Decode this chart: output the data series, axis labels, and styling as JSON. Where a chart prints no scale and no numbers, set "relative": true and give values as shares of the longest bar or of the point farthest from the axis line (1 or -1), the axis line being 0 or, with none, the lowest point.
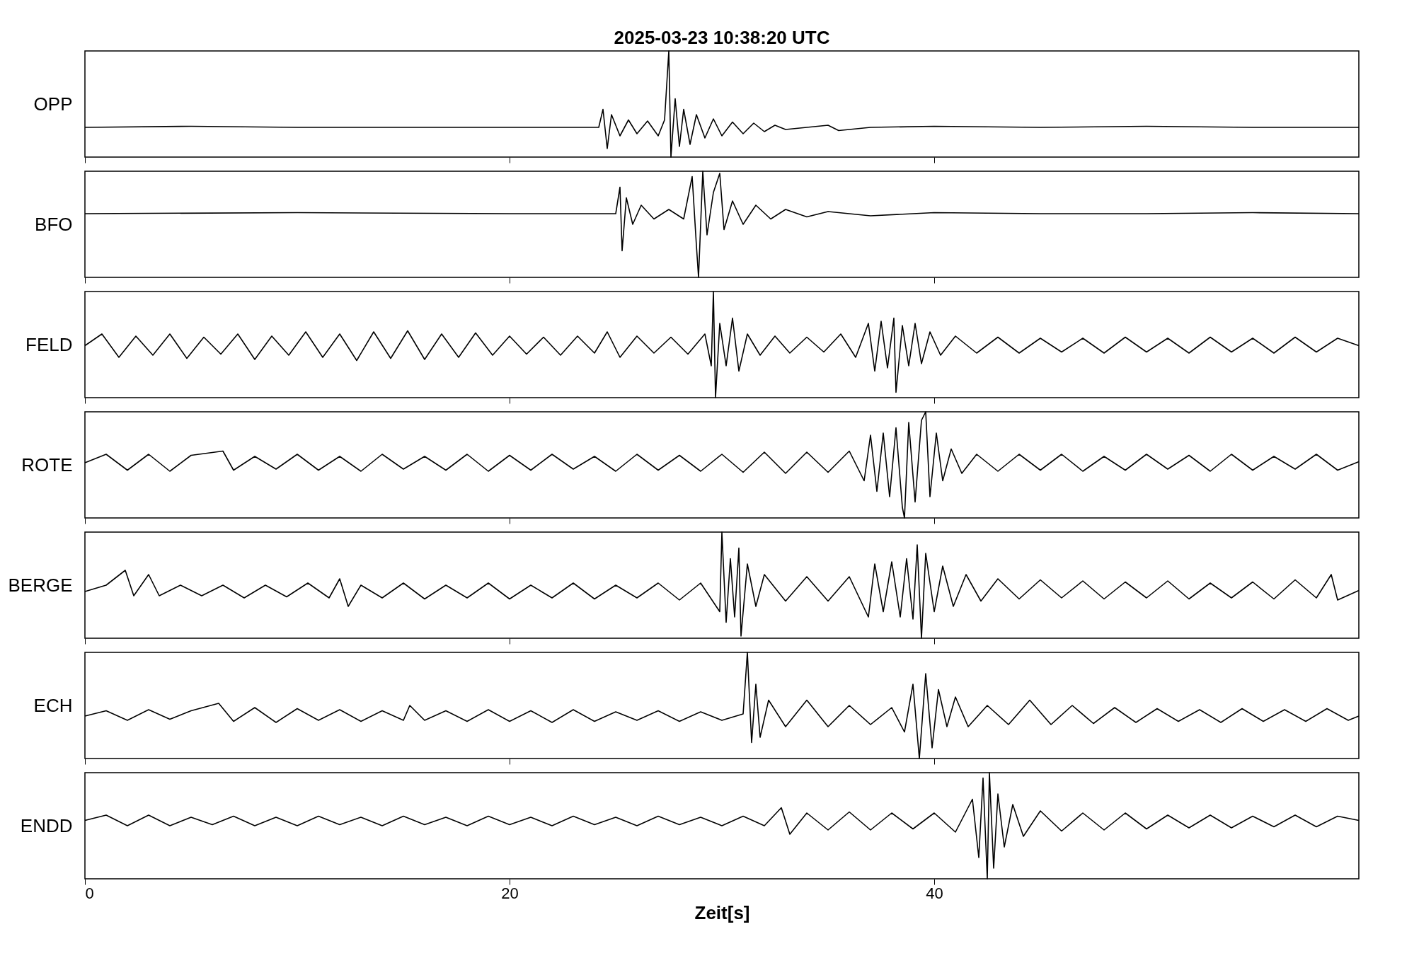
{
  "chart_data": [
    {
      "type": "line",
      "title": "2025-03-23  10:38:20 UTC",
      "ylabel": "OPP",
      "relative": true,
      "xlim": [
        0,
        60
      ],
      "xticks": [
        0,
        20,
        40
      ],
      "tick_labels": false,
      "grid": false,
      "x": [
        0,
        5,
        10,
        15,
        20,
        24.2,
        24.4,
        24.6,
        24.8,
        25.2,
        25.6,
        26,
        26.5,
        27,
        27.3,
        27.5,
        27.6,
        27.8,
        28,
        28.2,
        28.5,
        28.8,
        29.2,
        29.6,
        30,
        30.5,
        31,
        31.5,
        32,
        32.5,
        33,
        35,
        35.5,
        37,
        40,
        45,
        50,
        55,
        60
      ],
      "series": [
        {
          "color": "#000000",
          "values": [
            0.28,
            0.29,
            0.28,
            0.28,
            0.28,
            0.28,
            0.45,
            0.08,
            0.4,
            0.2,
            0.35,
            0.22,
            0.34,
            0.2,
            0.35,
            1.0,
            0.0,
            0.55,
            0.1,
            0.45,
            0.12,
            0.4,
            0.18,
            0.36,
            0.2,
            0.33,
            0.22,
            0.32,
            0.24,
            0.3,
            0.26,
            0.3,
            0.25,
            0.28,
            0.29,
            0.28,
            0.29,
            0.28,
            0.28
          ]
        }
      ]
    },
    {
      "type": "line",
      "ylabel": "BFO",
      "relative": true,
      "xlim": [
        0,
        60
      ],
      "xticks": [
        0,
        20,
        40
      ],
      "tick_labels": false,
      "grid": false,
      "x": [
        0,
        10,
        20,
        25,
        25.2,
        25.3,
        25.5,
        25.8,
        26.2,
        26.8,
        27.5,
        28.2,
        28.6,
        28.8,
        28.9,
        29.1,
        29.3,
        29.6,
        29.9,
        30.1,
        30.5,
        31,
        31.6,
        32.3,
        33,
        34,
        35,
        37,
        40,
        45,
        50,
        55,
        60
      ],
      "series": [
        {
          "color": "#000000",
          "values": [
            0.6,
            0.61,
            0.6,
            0.6,
            0.85,
            0.25,
            0.75,
            0.5,
            0.68,
            0.55,
            0.64,
            0.55,
            0.95,
            0.3,
            0.0,
            1.0,
            0.4,
            0.8,
            0.98,
            0.45,
            0.72,
            0.5,
            0.68,
            0.55,
            0.64,
            0.57,
            0.62,
            0.58,
            0.61,
            0.6,
            0.6,
            0.61,
            0.6
          ]
        }
      ]
    },
    {
      "type": "line",
      "ylabel": "FELD",
      "relative": true,
      "xlim": [
        0,
        60
      ],
      "xticks": [
        0,
        20,
        40
      ],
      "tick_labels": false,
      "grid": false,
      "x": [
        0,
        0.8,
        1.6,
        2.4,
        3.2,
        4,
        4.8,
        5.6,
        6.4,
        7.2,
        8,
        8.8,
        9.6,
        10.4,
        11.2,
        12,
        12.8,
        13.6,
        14.4,
        15.2,
        16,
        16.8,
        17.6,
        18.4,
        19.2,
        20,
        20.8,
        21.6,
        22.4,
        23.2,
        24,
        24.6,
        25.2,
        26,
        26.8,
        27.6,
        28.4,
        29.2,
        29.5,
        29.6,
        29.7,
        29.9,
        30.2,
        30.5,
        30.8,
        31.2,
        31.8,
        32.5,
        33.2,
        34,
        34.8,
        35.6,
        36.3,
        36.9,
        37.2,
        37.5,
        37.8,
        38.1,
        38.2,
        38.5,
        38.8,
        39.1,
        39.4,
        39.8,
        40.3,
        41,
        42,
        43,
        44,
        45,
        46,
        47,
        48,
        49,
        50,
        51,
        52,
        53,
        54,
        55,
        56,
        57,
        58,
        59,
        60
      ],
      "series": [
        {
          "color": "#000000",
          "values": [
            0.49,
            0.6,
            0.38,
            0.58,
            0.4,
            0.6,
            0.37,
            0.57,
            0.41,
            0.6,
            0.36,
            0.58,
            0.4,
            0.62,
            0.38,
            0.6,
            0.35,
            0.62,
            0.37,
            0.63,
            0.36,
            0.6,
            0.38,
            0.61,
            0.4,
            0.58,
            0.41,
            0.57,
            0.4,
            0.58,
            0.42,
            0.62,
            0.38,
            0.58,
            0.42,
            0.57,
            0.41,
            0.6,
            0.3,
            1.0,
            0.0,
            0.7,
            0.3,
            0.75,
            0.25,
            0.6,
            0.4,
            0.58,
            0.42,
            0.57,
            0.43,
            0.6,
            0.38,
            0.7,
            0.25,
            0.72,
            0.28,
            0.75,
            0.05,
            0.68,
            0.3,
            0.7,
            0.32,
            0.62,
            0.4,
            0.58,
            0.42,
            0.57,
            0.42,
            0.56,
            0.43,
            0.56,
            0.42,
            0.57,
            0.43,
            0.56,
            0.42,
            0.57,
            0.43,
            0.56,
            0.42,
            0.57,
            0.43,
            0.56,
            0.49
          ]
        }
      ]
    },
    {
      "type": "line",
      "ylabel": "ROTE",
      "relative": true,
      "xlim": [
        0,
        60
      ],
      "xticks": [
        0,
        20,
        40
      ],
      "tick_labels": false,
      "grid": false,
      "x": [
        0,
        1,
        2,
        3,
        4,
        5,
        6.5,
        7,
        8,
        9,
        10,
        11,
        12,
        13,
        14,
        15,
        16,
        17,
        18,
        19,
        20,
        21,
        22,
        23,
        24,
        25,
        26,
        27,
        28,
        29,
        30,
        31,
        32,
        33,
        34,
        35,
        36,
        36.7,
        37,
        37.3,
        37.6,
        37.9,
        38.2,
        38.5,
        38.6,
        38.8,
        39.1,
        39.4,
        39.6,
        39.8,
        40.1,
        40.4,
        40.8,
        41.3,
        42,
        43,
        44,
        45,
        46,
        47,
        48,
        49,
        50,
        51,
        52,
        53,
        54,
        55,
        56,
        57,
        58,
        59,
        60
      ],
      "series": [
        {
          "color": "#000000",
          "values": [
            0.52,
            0.6,
            0.45,
            0.6,
            0.44,
            0.59,
            0.63,
            0.45,
            0.58,
            0.46,
            0.6,
            0.45,
            0.58,
            0.44,
            0.6,
            0.46,
            0.58,
            0.45,
            0.6,
            0.44,
            0.59,
            0.45,
            0.6,
            0.46,
            0.58,
            0.44,
            0.6,
            0.45,
            0.59,
            0.44,
            0.6,
            0.43,
            0.62,
            0.42,
            0.62,
            0.43,
            0.63,
            0.35,
            0.78,
            0.25,
            0.8,
            0.2,
            0.85,
            0.1,
            0.0,
            0.9,
            0.15,
            0.92,
            1.0,
            0.2,
            0.8,
            0.35,
            0.65,
            0.42,
            0.6,
            0.44,
            0.6,
            0.45,
            0.6,
            0.44,
            0.58,
            0.45,
            0.6,
            0.46,
            0.59,
            0.44,
            0.6,
            0.45,
            0.58,
            0.46,
            0.6,
            0.45,
            0.53
          ]
        }
      ]
    },
    {
      "type": "line",
      "ylabel": "BERGE",
      "relative": true,
      "xlim": [
        0,
        60
      ],
      "xticks": [
        0,
        20,
        40
      ],
      "tick_labels": false,
      "grid": false,
      "x": [
        0,
        1,
        1.9,
        2.3,
        3,
        3.5,
        4.5,
        5.5,
        6.5,
        7.5,
        8.5,
        9.5,
        10.5,
        11.5,
        12,
        12.4,
        13,
        14,
        15,
        16,
        17,
        18,
        19,
        20,
        21,
        22,
        23,
        24,
        25,
        26,
        27,
        28,
        29,
        29.9,
        30,
        30.2,
        30.4,
        30.6,
        30.8,
        30.9,
        31.2,
        31.6,
        32,
        33,
        34,
        35,
        36,
        36.9,
        37.2,
        37.6,
        38,
        38.4,
        38.7,
        39,
        39.2,
        39.4,
        39.6,
        40,
        40.4,
        40.9,
        41.5,
        42.2,
        43,
        44,
        45,
        46,
        47,
        48,
        49,
        50,
        51,
        52,
        53,
        54,
        55,
        56,
        57,
        58,
        58.7,
        59,
        60
      ],
      "series": [
        {
          "color": "#000000",
          "values": [
            0.44,
            0.5,
            0.64,
            0.4,
            0.6,
            0.4,
            0.5,
            0.4,
            0.5,
            0.38,
            0.5,
            0.39,
            0.52,
            0.38,
            0.56,
            0.3,
            0.5,
            0.38,
            0.52,
            0.37,
            0.5,
            0.38,
            0.52,
            0.37,
            0.5,
            0.38,
            0.52,
            0.37,
            0.5,
            0.38,
            0.52,
            0.36,
            0.52,
            0.25,
            1.0,
            0.15,
            0.75,
            0.2,
            0.85,
            0.02,
            0.7,
            0.3,
            0.6,
            0.35,
            0.58,
            0.35,
            0.58,
            0.2,
            0.7,
            0.25,
            0.72,
            0.2,
            0.75,
            0.18,
            0.88,
            0.0,
            0.8,
            0.25,
            0.68,
            0.3,
            0.6,
            0.35,
            0.56,
            0.37,
            0.55,
            0.38,
            0.54,
            0.37,
            0.53,
            0.38,
            0.54,
            0.37,
            0.52,
            0.38,
            0.53,
            0.37,
            0.55,
            0.38,
            0.6,
            0.36,
            0.45
          ]
        }
      ]
    },
    {
      "type": "line",
      "ylabel": "ECH",
      "relative": true,
      "xlim": [
        0,
        60
      ],
      "xticks": [
        0,
        20,
        40
      ],
      "tick_labels": false,
      "grid": false,
      "x": [
        0,
        1,
        2,
        3,
        4,
        5,
        6.3,
        7,
        8,
        9,
        10,
        11,
        12,
        13,
        14,
        15,
        15.3,
        16,
        17,
        18,
        19,
        20,
        21,
        22,
        23,
        24,
        25,
        26,
        27,
        28,
        29,
        30,
        31,
        31.2,
        31.4,
        31.6,
        31.8,
        32.2,
        33,
        34,
        35,
        36,
        37,
        38,
        38.6,
        39,
        39.3,
        39.6,
        39.9,
        40.2,
        40.6,
        41,
        41.6,
        42.5,
        43.5,
        44.5,
        45.5,
        46.5,
        47.5,
        48.5,
        49.5,
        50.5,
        51.5,
        52.5,
        53.5,
        54.5,
        55.5,
        56.5,
        57.5,
        58.5,
        59.5,
        60
      ],
      "series": [
        {
          "color": "#000000",
          "values": [
            0.4,
            0.45,
            0.36,
            0.46,
            0.37,
            0.45,
            0.52,
            0.35,
            0.48,
            0.34,
            0.47,
            0.36,
            0.46,
            0.35,
            0.45,
            0.36,
            0.5,
            0.36,
            0.45,
            0.35,
            0.46,
            0.35,
            0.45,
            0.34,
            0.46,
            0.35,
            0.44,
            0.36,
            0.45,
            0.35,
            0.44,
            0.36,
            0.42,
            1.0,
            0.15,
            0.7,
            0.2,
            0.55,
            0.3,
            0.55,
            0.3,
            0.5,
            0.32,
            0.48,
            0.25,
            0.7,
            0.0,
            0.8,
            0.1,
            0.65,
            0.3,
            0.58,
            0.3,
            0.5,
            0.32,
            0.55,
            0.32,
            0.5,
            0.33,
            0.48,
            0.34,
            0.47,
            0.35,
            0.46,
            0.34,
            0.47,
            0.35,
            0.46,
            0.35,
            0.47,
            0.36,
            0.4
          ]
        }
      ]
    },
    {
      "type": "line",
      "ylabel": "ENDD",
      "xlabel": "Zeit[s]",
      "relative": true,
      "xlim": [
        0,
        60
      ],
      "xticks": [
        0,
        20,
        40
      ],
      "tick_labels": "x",
      "grid": false,
      "x": [
        0,
        1,
        2,
        3,
        4,
        5,
        6,
        7,
        8,
        9,
        10,
        11,
        12,
        13,
        14,
        15,
        16,
        17,
        18,
        19,
        20,
        21,
        22,
        23,
        24,
        25,
        26,
        27,
        28,
        29,
        30,
        31,
        32,
        32.8,
        33.2,
        34,
        35,
        36,
        37,
        38,
        39,
        40,
        41,
        41.8,
        42.1,
        42.3,
        42.5,
        42.6,
        42.8,
        43,
        43.3,
        43.7,
        44.2,
        45,
        46,
        47,
        48,
        49,
        50,
        51,
        52,
        53,
        54,
        55,
        56,
        57,
        58,
        59,
        60
      ],
      "series": [
        {
          "color": "#000000",
          "values": [
            0.55,
            0.6,
            0.5,
            0.6,
            0.5,
            0.58,
            0.51,
            0.59,
            0.5,
            0.58,
            0.5,
            0.59,
            0.51,
            0.58,
            0.5,
            0.59,
            0.51,
            0.58,
            0.5,
            0.59,
            0.51,
            0.58,
            0.5,
            0.59,
            0.51,
            0.58,
            0.5,
            0.59,
            0.51,
            0.58,
            0.5,
            0.59,
            0.5,
            0.67,
            0.42,
            0.62,
            0.46,
            0.63,
            0.46,
            0.62,
            0.47,
            0.62,
            0.44,
            0.75,
            0.2,
            0.95,
            0.0,
            1.0,
            0.1,
            0.8,
            0.3,
            0.7,
            0.4,
            0.64,
            0.45,
            0.62,
            0.46,
            0.62,
            0.47,
            0.6,
            0.48,
            0.6,
            0.48,
            0.59,
            0.49,
            0.6,
            0.49,
            0.59,
            0.55
          ]
        }
      ]
    }
  ]
}
